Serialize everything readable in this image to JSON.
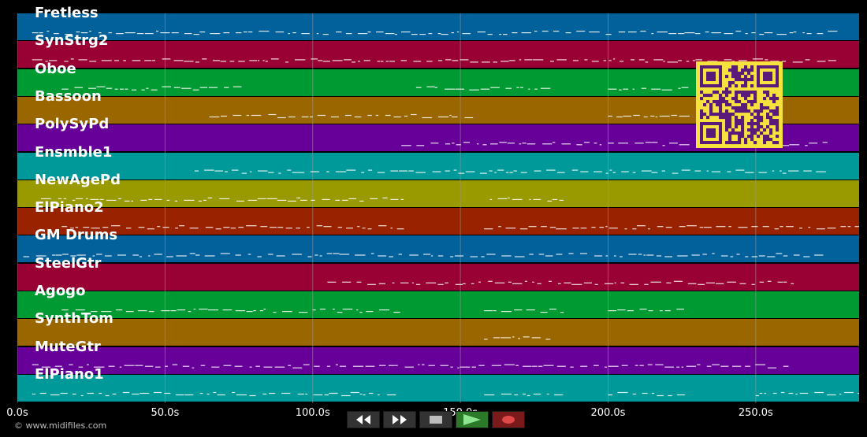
{
  "tracks": [
    {
      "name": "Fretless",
      "color": "#02609a"
    },
    {
      "name": "SynStrg2",
      "color": "#990033"
    },
    {
      "name": "Oboe",
      "color": "#009a33"
    },
    {
      "name": "Bassoon",
      "color": "#996600"
    },
    {
      "name": "PolySyPd",
      "color": "#660099"
    },
    {
      "name": "Ensmble1",
      "color": "#009999"
    },
    {
      "name": "NewAgePd",
      "color": "#999900"
    },
    {
      "name": "ElPiano2",
      "color": "#992200"
    },
    {
      "name": "GM Drums",
      "color": "#02609a"
    },
    {
      "name": "SteelGtr",
      "color": "#990033"
    },
    {
      "name": "Agogo",
      "color": "#009a33"
    },
    {
      "name": "SynthTom",
      "color": "#996600"
    },
    {
      "name": "MuteGtr",
      "color": "#660099"
    },
    {
      "name": "ElPiano1",
      "color": "#009999"
    }
  ],
  "timeline": {
    "ticks": [
      "0.0s",
      "50.0s",
      "100.0s",
      "150.0s",
      "200.0s",
      "250.0s"
    ],
    "tick_values": [
      0,
      50,
      100,
      150,
      200,
      250
    ],
    "max_seconds": 285
  },
  "copyright": "© www.midifiles.com",
  "transport": {
    "rewind_icon": "rewind-icon",
    "fast_forward_icon": "fast-forward-icon",
    "stop_icon": "stop-icon",
    "play_icon": "play-icon",
    "record_icon": "record-icon"
  },
  "colors": {
    "background": "#000000",
    "grid": "#9a9a9a",
    "note": "#ffffff",
    "qr_background": "#f5e23c",
    "qr_module": "#5a1a7a"
  }
}
